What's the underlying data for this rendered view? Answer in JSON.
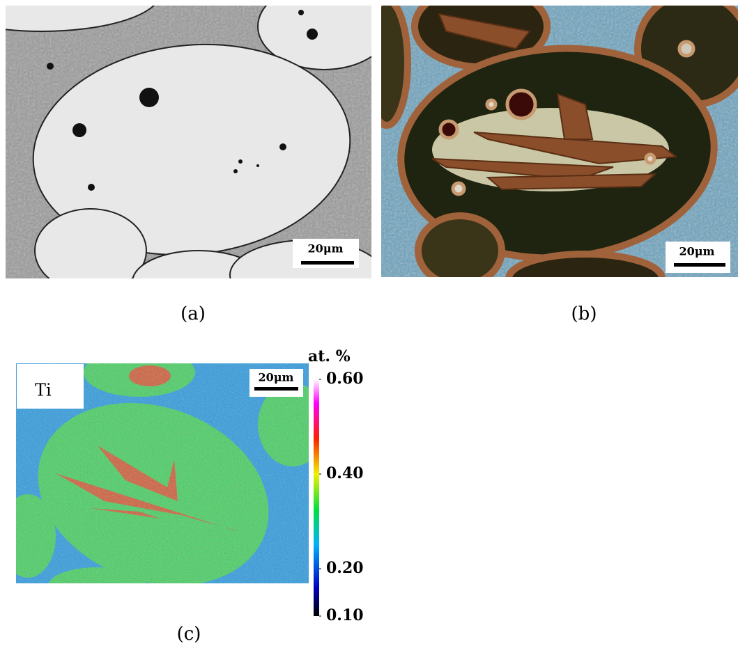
{
  "panels": [
    {
      "label": "(a)",
      "scale_bar": "20μm"
    },
    {
      "label": "(b)",
      "scale_bar": "20μm"
    },
    {
      "label": "(c)",
      "scale_bar": "20μm",
      "element": "Ti",
      "colorbar": {
        "title": "at. %",
        "lim": [
          0.1,
          0.6
        ],
        "ticks": [
          {
            "value": 0.6,
            "label": "0.60"
          },
          {
            "value": 0.4,
            "label": "0.40"
          },
          {
            "value": 0.2,
            "label": "0.20"
          },
          {
            "value": 0.1,
            "label": "0.10"
          }
        ]
      }
    }
  ]
}
